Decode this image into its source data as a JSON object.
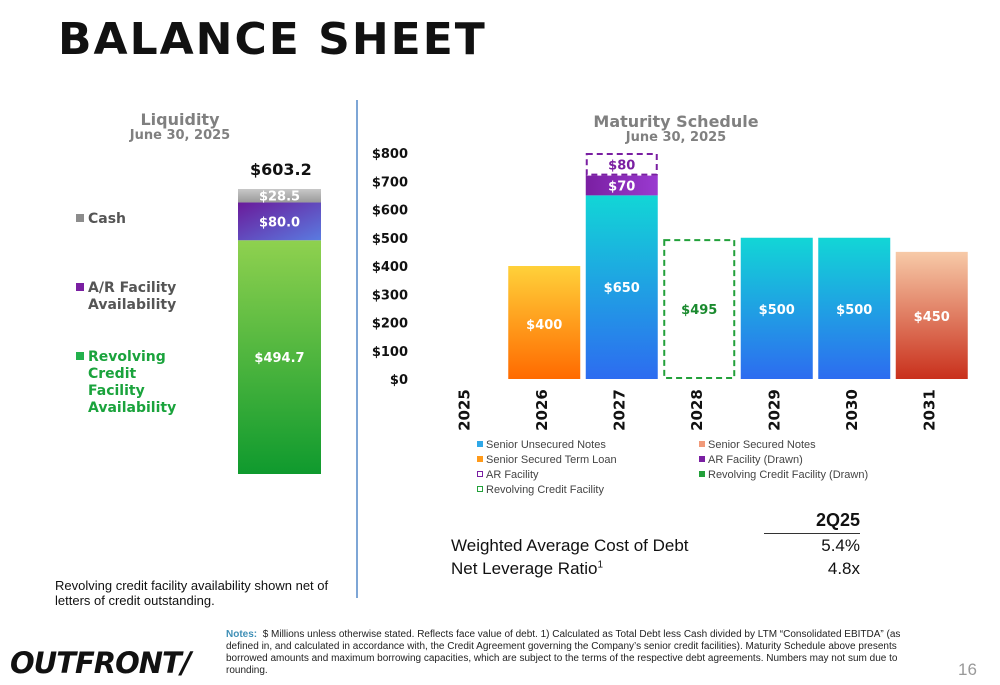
{
  "title": "BALANCE SHEET",
  "liquidity": {
    "title": "Liquidity",
    "subtitle": "June 30, 2025",
    "total_label": "$603.2",
    "legend": {
      "cash": "Cash",
      "ar_line1": "A/R Facility",
      "ar_line2": "Availability",
      "rcf_line1": "Revolving",
      "rcf_line2": "Credit",
      "rcf_line3": "Facility",
      "rcf_line4": "Availability"
    },
    "colors": {
      "cash": "#a6a6a6",
      "ar": "#7a1fa2",
      "rcf": "#22b14c",
      "rcf_text": "#1aa33c"
    }
  },
  "maturity": {
    "title": "Maturity Schedule",
    "subtitle": "June 30, 2025",
    "legend": {
      "senior_unsecured": "Senior Unsecured Notes",
      "senior_secured": "Senior Secured Notes",
      "term_loan": "Senior Secured Term Loan",
      "ar_drawn": "AR Facility (Drawn)",
      "ar_facility": "AR Facility",
      "rcf_drawn": "Revolving Credit Facility (Drawn)",
      "rcf": "Revolving Credit Facility"
    },
    "colors": {
      "senior_unsecured": "#2f7fe0",
      "senior_secured": "#d43a20",
      "term_loan": "#ff8c00",
      "ar": "#7a1fa2",
      "rcf": "#22a03a"
    }
  },
  "chart_data": [
    {
      "type": "bar",
      "stacked": true,
      "categories": [
        ""
      ],
      "series": [
        {
          "name": "Revolving Credit Facility Availability",
          "values": [
            494.7
          ],
          "label": "$494.7"
        },
        {
          "name": "A/R Facility Availability",
          "values": [
            80.0
          ],
          "label": "$80.0"
        },
        {
          "name": "Cash",
          "values": [
            28.5
          ],
          "label": "$28.5"
        }
      ],
      "total": 603.2
    },
    {
      "type": "bar",
      "stacked": true,
      "categories": [
        "2025",
        "2026",
        "2027",
        "2028",
        "2029",
        "2030",
        "2031"
      ],
      "ylim": [
        0,
        800
      ],
      "yticks": [
        "$0",
        "$100",
        "$200",
        "$300",
        "$400",
        "$500",
        "$600",
        "$700",
        "$800"
      ],
      "bars": [
        {
          "category": "2026",
          "series": "Senior Secured Term Loan",
          "value": 400,
          "label": "$400",
          "style": "term_loan"
        },
        {
          "category": "2027",
          "series": "Senior Unsecured Notes",
          "value": 650,
          "label": "$650",
          "style": "senior_unsecured"
        },
        {
          "category": "2027",
          "series": "AR Facility (Drawn)",
          "value": 70,
          "base": 650,
          "label": "$70",
          "style": "ar_drawn"
        },
        {
          "category": "2027",
          "series": "AR Facility",
          "value": 80,
          "base": 720,
          "label": "$80",
          "style": "ar_dashed"
        },
        {
          "category": "2028",
          "series": "Revolving Credit Facility",
          "value": 495,
          "label": "$495",
          "style": "rcf_dashed"
        },
        {
          "category": "2029",
          "series": "Senior Unsecured Notes",
          "value": 500,
          "label": "$500",
          "style": "senior_unsecured"
        },
        {
          "category": "2030",
          "series": "Senior Unsecured Notes",
          "value": 500,
          "label": "$500",
          "style": "senior_unsecured"
        },
        {
          "category": "2031",
          "series": "Senior Secured Notes",
          "value": 450,
          "label": "$450",
          "style": "senior_secured"
        }
      ]
    }
  ],
  "metrics": {
    "header": "2Q25",
    "rows": [
      {
        "label": "Weighted Average Cost of Debt",
        "sup": "",
        "value": "5.4%"
      },
      {
        "label": "Net Leverage Ratio",
        "sup": "1",
        "value": "4.8x"
      }
    ]
  },
  "liquidity_note": "Revolving credit facility availability shown net of letters of credit outstanding.",
  "notes": {
    "label": "Notes:",
    "text": "$ Millions unless otherwise stated. Reflects face value of debt. 1) Calculated as Total Debt less Cash divided by LTM “Consolidated EBITDA” (as defined in, and calculated in accordance with, the Credit Agreement governing the Company’s senior credit facilities). Maturity Schedule above presents borrowed amounts and maximum borrowing capacities, which are subject to the terms of the respective debt agreements. Numbers may not sum due to rounding."
  },
  "logo": "OUTFRONT/",
  "page_number": "16"
}
